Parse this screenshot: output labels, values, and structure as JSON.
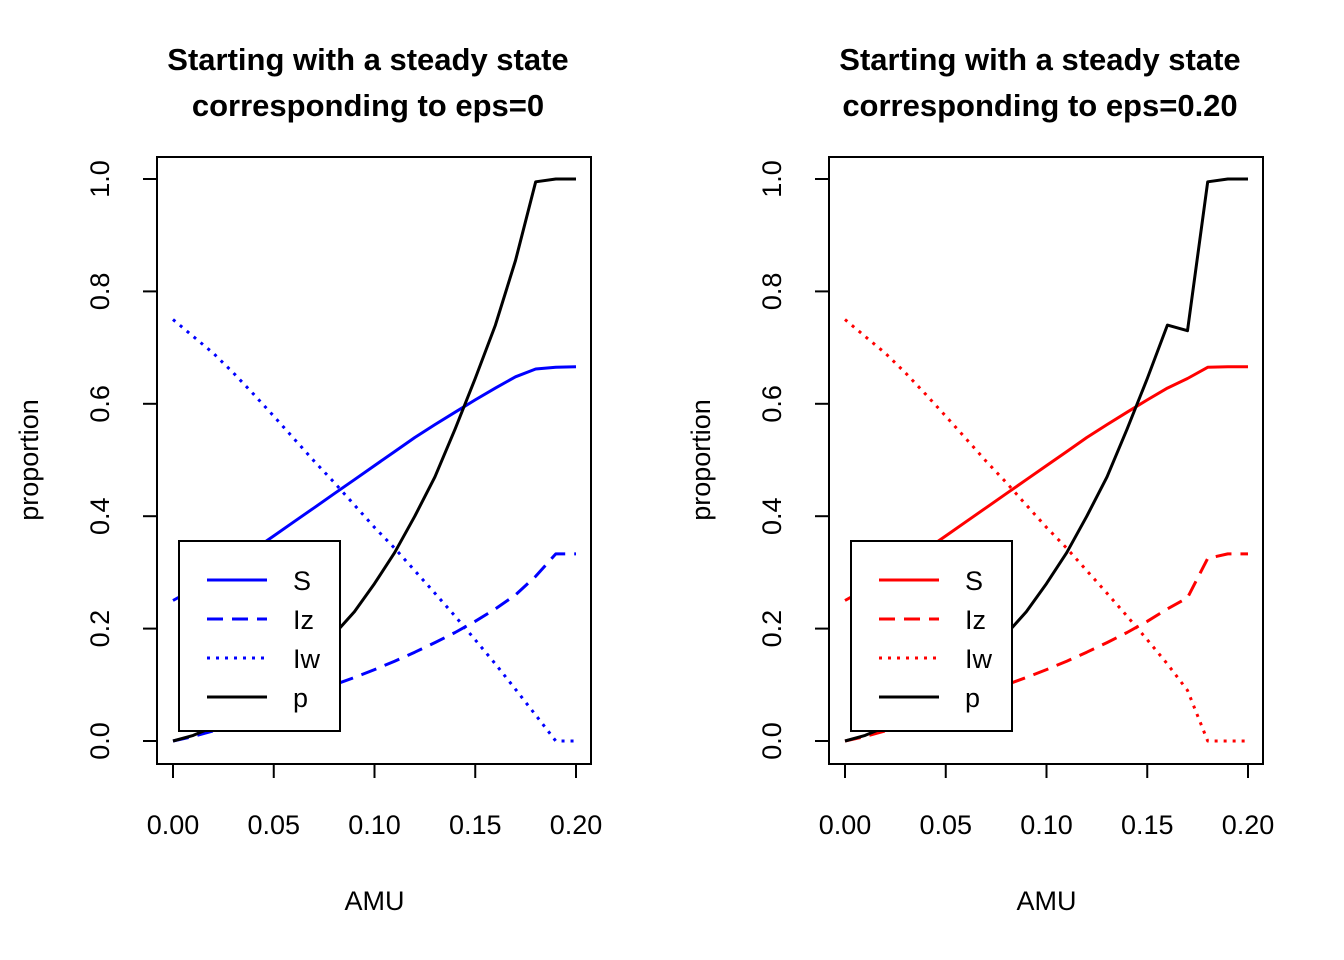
{
  "chart_data": [
    {
      "type": "line",
      "title_lines": [
        "Starting with a steady state",
        "corresponding to eps=0"
      ],
      "xlabel": "AMU",
      "ylabel": "proportion",
      "xlim": [
        0,
        0.2
      ],
      "ylim": [
        0,
        1
      ],
      "x_ticks": [
        "0.00",
        "0.05",
        "0.10",
        "0.15",
        "0.20"
      ],
      "y_ticks": [
        "0.0",
        "0.2",
        "0.4",
        "0.6",
        "0.8",
        "1.0"
      ],
      "grid": false,
      "legend_position": "bottom-left",
      "x": [
        0,
        0.01,
        0.02,
        0.03,
        0.04,
        0.05,
        0.06,
        0.07,
        0.08,
        0.09,
        0.1,
        0.11,
        0.12,
        0.13,
        0.14,
        0.15,
        0.16,
        0.17,
        0.18,
        0.19,
        0.2
      ],
      "series": [
        {
          "name": "S",
          "color": "#0000ff",
          "dash": "solid",
          "values": [
            0.25,
            0.27,
            0.29,
            0.315,
            0.34,
            0.365,
            0.39,
            0.415,
            0.44,
            0.465,
            0.49,
            0.515,
            0.54,
            0.563,
            0.585,
            0.607,
            0.628,
            0.648,
            0.662,
            0.665,
            0.666
          ]
        },
        {
          "name": "Iz",
          "color": "#0000ff",
          "dash": "dashed",
          "values": [
            0.0,
            0.008,
            0.018,
            0.03,
            0.043,
            0.057,
            0.072,
            0.087,
            0.1,
            0.113,
            0.127,
            0.142,
            0.158,
            0.175,
            0.193,
            0.213,
            0.235,
            0.26,
            0.293,
            0.333,
            0.333
          ]
        },
        {
          "name": "Iw",
          "color": "#0000ff",
          "dash": "dotted",
          "values": [
            0.75,
            0.72,
            0.69,
            0.655,
            0.617,
            0.578,
            0.538,
            0.498,
            0.46,
            0.42,
            0.38,
            0.343,
            0.303,
            0.263,
            0.222,
            0.18,
            0.137,
            0.092,
            0.046,
            0.0,
            0.0
          ]
        },
        {
          "name": "p",
          "color": "#000000",
          "dash": "solid",
          "values": [
            0.0,
            0.01,
            0.025,
            0.045,
            0.07,
            0.1,
            0.125,
            0.155,
            0.19,
            0.23,
            0.28,
            0.335,
            0.4,
            0.47,
            0.555,
            0.645,
            0.74,
            0.855,
            0.995,
            1.0,
            1.0
          ]
        }
      ]
    },
    {
      "type": "line",
      "title_lines": [
        "Starting with a steady state",
        "corresponding to eps=0.20"
      ],
      "xlabel": "AMU",
      "ylabel": "proportion",
      "xlim": [
        0,
        0.2
      ],
      "ylim": [
        0,
        1
      ],
      "x_ticks": [
        "0.00",
        "0.05",
        "0.10",
        "0.15",
        "0.20"
      ],
      "y_ticks": [
        "0.0",
        "0.2",
        "0.4",
        "0.6",
        "0.8",
        "1.0"
      ],
      "grid": false,
      "legend_position": "bottom-left",
      "x": [
        0,
        0.01,
        0.02,
        0.03,
        0.04,
        0.05,
        0.06,
        0.07,
        0.08,
        0.09,
        0.1,
        0.11,
        0.12,
        0.13,
        0.14,
        0.15,
        0.16,
        0.17,
        0.18,
        0.19,
        0.2
      ],
      "series": [
        {
          "name": "S",
          "color": "#ff0000",
          "dash": "solid",
          "values": [
            0.25,
            0.27,
            0.29,
            0.315,
            0.34,
            0.365,
            0.39,
            0.415,
            0.44,
            0.465,
            0.49,
            0.515,
            0.54,
            0.563,
            0.585,
            0.607,
            0.628,
            0.645,
            0.665,
            0.666,
            0.666
          ]
        },
        {
          "name": "Iz",
          "color": "#ff0000",
          "dash": "dashed",
          "values": [
            0.0,
            0.008,
            0.018,
            0.03,
            0.043,
            0.057,
            0.072,
            0.087,
            0.1,
            0.113,
            0.127,
            0.142,
            0.158,
            0.175,
            0.193,
            0.213,
            0.235,
            0.255,
            0.325,
            0.333,
            0.333
          ]
        },
        {
          "name": "Iw",
          "color": "#ff0000",
          "dash": "dotted",
          "values": [
            0.75,
            0.72,
            0.69,
            0.655,
            0.617,
            0.578,
            0.538,
            0.498,
            0.46,
            0.42,
            0.38,
            0.343,
            0.303,
            0.263,
            0.222,
            0.18,
            0.137,
            0.09,
            0.0,
            0.0,
            0.0
          ]
        },
        {
          "name": "p",
          "color": "#000000",
          "dash": "solid",
          "values": [
            0.0,
            0.01,
            0.025,
            0.045,
            0.07,
            0.1,
            0.125,
            0.155,
            0.19,
            0.23,
            0.28,
            0.335,
            0.4,
            0.47,
            0.555,
            0.645,
            0.74,
            0.73,
            0.995,
            1.0,
            1.0
          ]
        }
      ]
    }
  ]
}
